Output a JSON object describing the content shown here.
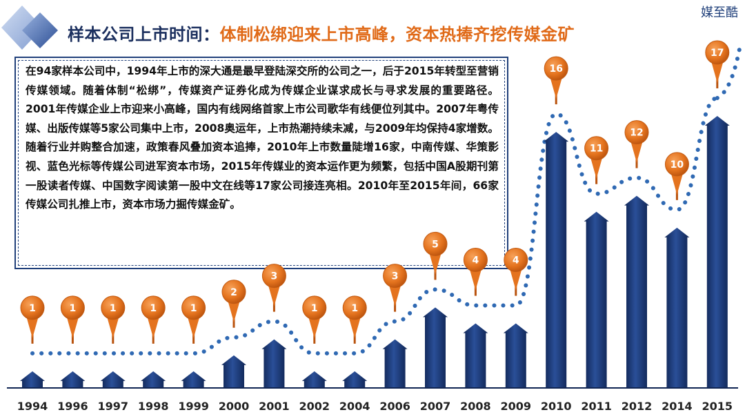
{
  "brand": "媒至酷",
  "title": {
    "main": "样本公司上市时间",
    "colon": "：",
    "sub": "体制松绑迎来上市高峰，资本热捧齐挖传媒金矿"
  },
  "description": "在94家样本公司中，1994年上市的深大通是最早登陆深交所的公司之一，后于2015年转型至营销传媒领域。随着体制“松绑”，传媒资产证券化成为传媒企业谋求成长与寻求发展的重要路径。2001年传媒企业上市迎来小高峰，国内有线网络首家上市公司歌华有线便位列其中。2007年粤传媒、出版传媒等5家公司集中上市，2008奥运年，上市热潮持续未减，与2009年均保持4家增数。随着行业并购整合加速，政策春风叠加资本追捧，2010年上市数量陡增16家，中南传媒、华策影视、蓝色光标等传媒公司进军资本市场，2015年传媒业的资本运作更为频繁，包括中国A股期刊第一股读者传媒、中国数字阅读第一股中文在线等17家公司接连亮相。2010年至2015年间，66家传媒公司扎推上市，资本市场力掘传媒金矿。",
  "colors": {
    "bar": "#1f3f7a",
    "bar_dark": "#0f2452",
    "pin": "#e4731e",
    "pin_dark": "#b9520d",
    "dots": "#2f69b3",
    "title_accent": "#e06a18",
    "title_main": "#1b2f5e"
  },
  "chart_data": {
    "type": "bar",
    "categories": [
      "1994",
      "1996",
      "1997",
      "1998",
      "1999",
      "2000",
      "2001",
      "2002",
      "2004",
      "2006",
      "2007",
      "2008",
      "2009",
      "2010",
      "2011",
      "2012",
      "2014",
      "2015"
    ],
    "values": [
      1,
      1,
      1,
      1,
      1,
      2,
      3,
      1,
      1,
      3,
      5,
      4,
      4,
      16,
      11,
      12,
      10,
      17
    ],
    "title": "样本公司上市时间",
    "xlabel": "",
    "ylabel": "",
    "ylim": [
      0,
      17
    ],
    "grid": false,
    "legend": "none",
    "bar_style": "arrow",
    "data_labels": "pin-markers",
    "trend_line": "dotted"
  }
}
